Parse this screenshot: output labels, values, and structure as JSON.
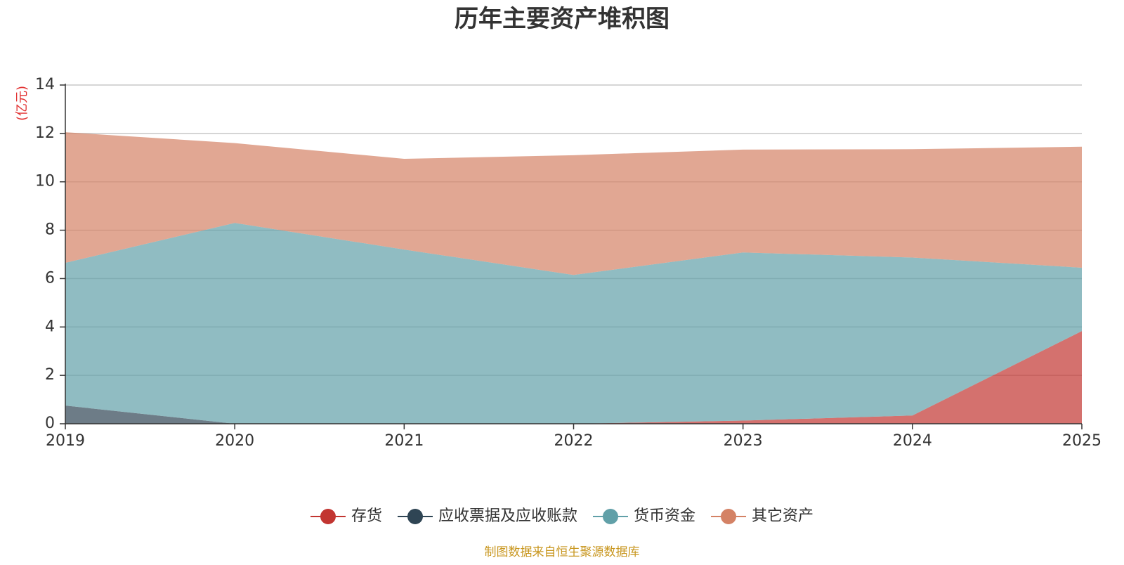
{
  "chart_data": {
    "type": "area",
    "stacked": true,
    "title": "历年主要资产堆积图",
    "y_unit_label": "(亿元)",
    "x": [
      "2019",
      "2020",
      "2021",
      "2022",
      "2023",
      "2024",
      "2025"
    ],
    "ylim": [
      0,
      14
    ],
    "y_ticks": [
      "0",
      "2",
      "4",
      "6",
      "8",
      "10",
      "12",
      "14"
    ],
    "grid": true,
    "legend_position": "bottom",
    "series": [
      {
        "name": "存货",
        "color": "#c23531",
        "values": [
          0,
          0,
          0,
          0,
          0.13,
          0.34,
          3.83
        ]
      },
      {
        "name": "应收票据及应收账款",
        "color": "#2f4554",
        "values": [
          0.75,
          0,
          0,
          0,
          0,
          0,
          0
        ]
      },
      {
        "name": "货币资金",
        "color": "#61a0a8",
        "values": [
          5.9,
          8.3,
          7.2,
          6.15,
          6.95,
          6.53,
          2.62
        ]
      },
      {
        "name": "其它资产",
        "color": "#d48265",
        "values": [
          5.4,
          3.3,
          3.75,
          4.95,
          4.25,
          4.48,
          5.0
        ]
      }
    ],
    "source": "制图数据来自恒生聚源数据库"
  }
}
